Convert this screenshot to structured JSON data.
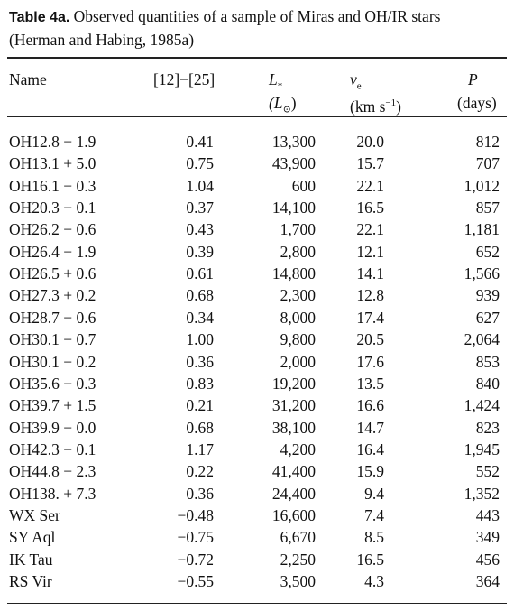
{
  "title": {
    "label": "Table 4a.",
    "text": "Observed quantities of a sample of Miras and OH/IR stars (Herman and Habing, 1985a)"
  },
  "table": {
    "columns": [
      {
        "name": "Name"
      },
      {
        "name": "[12]−[25]"
      },
      {
        "name": "L",
        "sub": "*",
        "unit": "(L",
        "unit_sub": "⊙",
        "unit_end": ")"
      },
      {
        "name": "v",
        "sub": "e",
        "unit": "(km s",
        "unit_sup": "−1",
        "unit_end": ")"
      },
      {
        "name": "P",
        "unit": "(days)"
      }
    ],
    "rows": [
      [
        "OH12.8 − 1.9",
        "0.41",
        "13,300",
        "20.0",
        "812"
      ],
      [
        "OH13.1 + 5.0",
        "0.75",
        "43,900",
        "15.7",
        "707"
      ],
      [
        "OH16.1 − 0.3",
        "1.04",
        "600",
        "22.1",
        "1,012"
      ],
      [
        "OH20.3 − 0.1",
        "0.37",
        "14,100",
        "16.5",
        "857"
      ],
      [
        "OH26.2 − 0.6",
        "0.43",
        "1,700",
        "22.1",
        "1,181"
      ],
      [
        "OH26.4 − 1.9",
        "0.39",
        "2,800",
        "12.1",
        "652"
      ],
      [
        "OH26.5 + 0.6",
        "0.61",
        "14,800",
        "14.1",
        "1,566"
      ],
      [
        "OH27.3 + 0.2",
        "0.68",
        "2,300",
        "12.8",
        "939"
      ],
      [
        "OH28.7 − 0.6",
        "0.34",
        "8,000",
        "17.4",
        "627"
      ],
      [
        "OH30.1 − 0.7",
        "1.00",
        "9,800",
        "20.5",
        "2,064"
      ],
      [
        "OH30.1 − 0.2",
        "0.36",
        "2,000",
        "17.6",
        "853"
      ],
      [
        "OH35.6 − 0.3",
        "0.83",
        "19,200",
        "13.5",
        "840"
      ],
      [
        "OH39.7 + 1.5",
        "0.21",
        "31,200",
        "16.6",
        "1,424"
      ],
      [
        "OH39.9 − 0.0",
        "0.68",
        "38,100",
        "14.7",
        "823"
      ],
      [
        "OH42.3 − 0.1",
        "1.17",
        "4,200",
        "16.4",
        "1,945"
      ],
      [
        "OH44.8 − 2.3",
        "0.22",
        "41,400",
        "15.9",
        "552"
      ],
      [
        "OH138. + 7.3",
        "0.36",
        "24,400",
        "9.4",
        "1,352"
      ],
      [
        "WX Ser",
        "−0.48",
        "16,600",
        "7.4",
        "443"
      ],
      [
        "SY Aql",
        "−0.75",
        "6,670",
        "8.5",
        "349"
      ],
      [
        "IK Tau",
        "−0.72",
        "2,250",
        "16.5",
        "456"
      ],
      [
        "RS Vir",
        "−0.55",
        "3,500",
        "4.3",
        "364"
      ]
    ]
  }
}
